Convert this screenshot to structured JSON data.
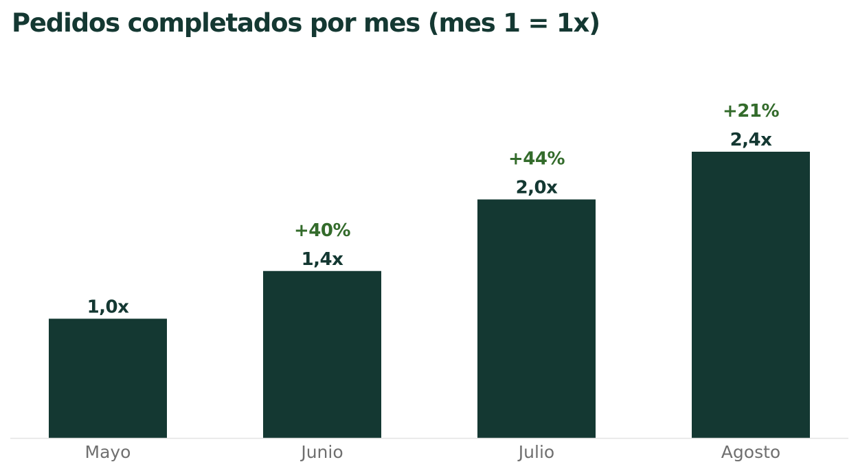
{
  "chart_data": {
    "type": "bar",
    "title": "Pedidos completados por mes (mes 1 = 1x)",
    "categories": [
      "Mayo",
      "Junio",
      "Julio",
      "Agosto"
    ],
    "values": [
      1.0,
      1.4,
      2.0,
      2.4
    ],
    "value_labels": [
      "1,0x",
      "1,4x",
      "2,0x",
      "2,4x"
    ],
    "change_labels": [
      "",
      "+40%",
      "+44%",
      "+21%"
    ],
    "xlabel": "",
    "ylabel": "",
    "ylim": [
      0,
      2.4
    ],
    "grid": false,
    "legend": "none"
  },
  "colors": {
    "bar": "#143832",
    "title": "#143832",
    "value_label": "#143832",
    "change_label": "#336b2b",
    "category_label": "#6f6f6f",
    "baseline": "#e3e3e3"
  }
}
